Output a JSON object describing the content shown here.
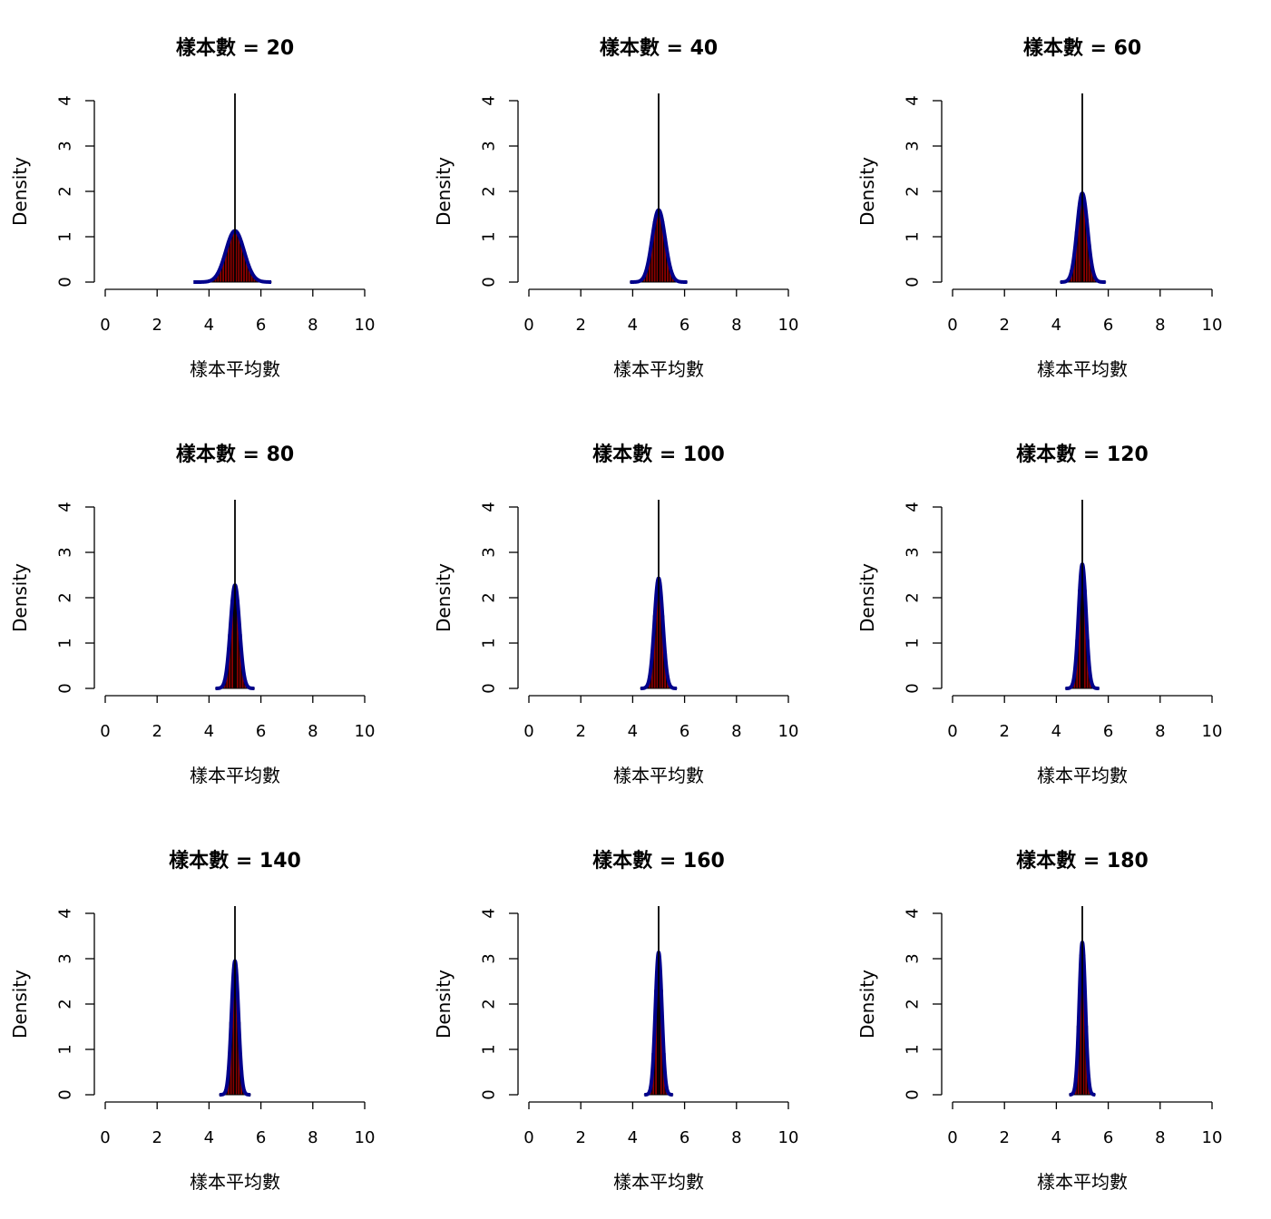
{
  "chart_data": {
    "type": "histogram-grid",
    "layout": {
      "rows": 3,
      "cols": 3
    },
    "panel_common": {
      "xlabel": "樣本平均數",
      "ylabel": "Density",
      "xlim": [
        0,
        10
      ],
      "ylim": [
        0,
        4
      ],
      "x_ticks": [
        0,
        2,
        4,
        6,
        8,
        10
      ],
      "y_ticks": [
        0,
        1,
        2,
        3,
        4
      ],
      "center_line_x": 5,
      "colors": {
        "bars": "#8b0000",
        "bar_border": "#000000",
        "curve": "#00008b",
        "center_line": "#000000"
      }
    },
    "panels": [
      {
        "title": "樣本數 = 20",
        "n": 20,
        "mean": 5,
        "peak_density": 1.13,
        "x_range": [
          3.4,
          6.4
        ]
      },
      {
        "title": "樣本數 = 40",
        "n": 40,
        "mean": 5,
        "peak_density": 1.59,
        "x_range": [
          3.9,
          6.1
        ]
      },
      {
        "title": "樣本數 = 60",
        "n": 60,
        "mean": 5,
        "peak_density": 1.96,
        "x_range": [
          4.15,
          5.9
        ]
      },
      {
        "title": "樣本數 = 80",
        "n": 80,
        "mean": 5,
        "peak_density": 2.28,
        "x_range": [
          4.25,
          5.75
        ]
      },
      {
        "title": "樣本數 = 100",
        "n": 100,
        "mean": 5,
        "peak_density": 2.43,
        "x_range": [
          4.3,
          5.7
        ]
      },
      {
        "title": "樣本數 = 120",
        "n": 120,
        "mean": 5,
        "peak_density": 2.74,
        "x_range": [
          4.35,
          5.65
        ]
      },
      {
        "title": "樣本數 = 140",
        "n": 140,
        "mean": 5,
        "peak_density": 2.95,
        "x_range": [
          4.4,
          5.6
        ]
      },
      {
        "title": "樣本數 = 160",
        "n": 160,
        "mean": 5,
        "peak_density": 3.14,
        "x_range": [
          4.45,
          5.55
        ]
      },
      {
        "title": "樣本數 = 180",
        "n": 180,
        "mean": 5,
        "peak_density": 3.36,
        "x_range": [
          4.5,
          5.5
        ]
      }
    ]
  }
}
